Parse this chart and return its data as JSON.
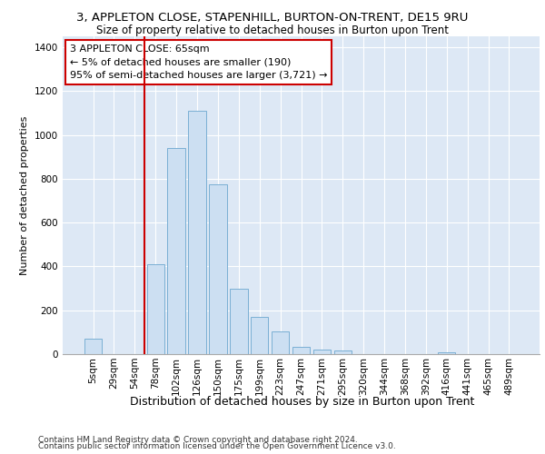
{
  "title_line1": "3, APPLETON CLOSE, STAPENHILL, BURTON-ON-TRENT, DE15 9RU",
  "title_line2": "Size of property relative to detached houses in Burton upon Trent",
  "xlabel": "Distribution of detached houses by size in Burton upon Trent",
  "ylabel": "Number of detached properties",
  "footer1": "Contains HM Land Registry data © Crown copyright and database right 2024.",
  "footer2": "Contains public sector information licensed under the Open Government Licence v3.0.",
  "annotation_title": "3 APPLETON CLOSE: 65sqm",
  "annotation_line2": "← 5% of detached houses are smaller (190)",
  "annotation_line3": "95% of semi-detached houses are larger (3,721) →",
  "bar_color": "#ccdff2",
  "bar_edge_color": "#7aafd4",
  "marker_color": "#cc0000",
  "background_color": "#dde8f5",
  "categories": [
    "5sqm",
    "29sqm",
    "54sqm",
    "78sqm",
    "102sqm",
    "126sqm",
    "150sqm",
    "175sqm",
    "199sqm",
    "223sqm",
    "247sqm",
    "271sqm",
    "295sqm",
    "320sqm",
    "344sqm",
    "368sqm",
    "392sqm",
    "416sqm",
    "441sqm",
    "465sqm",
    "489sqm"
  ],
  "values": [
    70,
    0,
    0,
    410,
    940,
    1110,
    775,
    300,
    170,
    105,
    35,
    20,
    15,
    0,
    0,
    0,
    0,
    10,
    0,
    0,
    0
  ],
  "ylim": [
    0,
    1450
  ],
  "yticks": [
    0,
    200,
    400,
    600,
    800,
    1000,
    1200,
    1400
  ],
  "marker_bin_index": 2.46,
  "bar_width": 0.85,
  "title1_fontsize": 9.5,
  "title2_fontsize": 8.5,
  "ylabel_fontsize": 8,
  "xlabel_fontsize": 9,
  "tick_fontsize": 7.5,
  "footer_fontsize": 6.5,
  "annot_fontsize": 8
}
